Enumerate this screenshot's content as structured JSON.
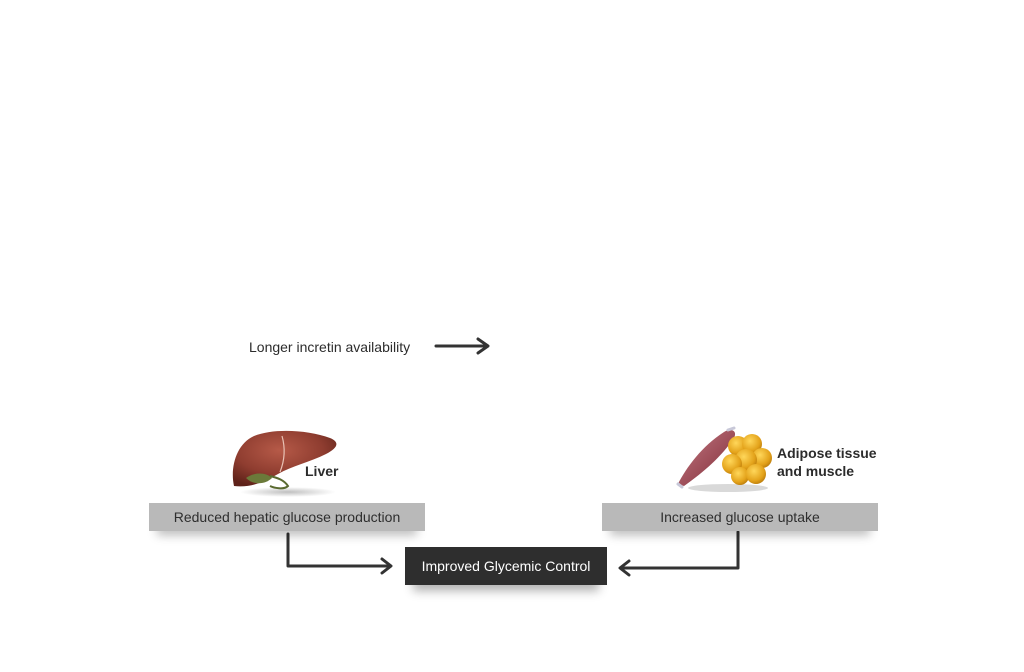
{
  "top_label": "Longer incretin availability",
  "liver": {
    "label": "Liver",
    "effect": "Reduced hepatic glucose production",
    "icon": "liver-icon"
  },
  "adipose": {
    "label_line1": "Adipose tissue",
    "label_line2": "and muscle",
    "effect": "Increased glucose uptake",
    "icon": "adipose-muscle-icon"
  },
  "outcome": "Improved Glycemic Control",
  "colors": {
    "arrow": "#333333",
    "effect_box": "#b9b9b9",
    "outcome_box": "#2e2e2e",
    "liver": "#8f3d30",
    "fat": "#e3a21a",
    "muscle": "#9a4a55"
  }
}
